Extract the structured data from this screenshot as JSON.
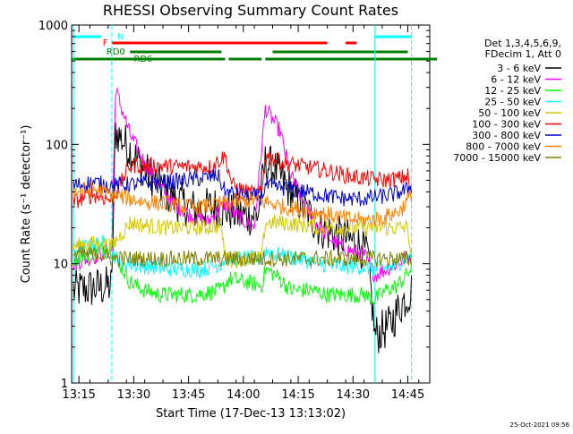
{
  "chart_data": {
    "type": "line",
    "title": "RHESSI Observing Summary Count Rates",
    "xlabel": "Start Time (17-Dec-13 13:13:02)",
    "ylabel": "Count Rate (s⁻¹ detector⁻¹)",
    "yscale": "log",
    "ylim": [
      1,
      1000
    ],
    "xlim_minutes_after_13_13": [
      0,
      98
    ],
    "x_ticks": [
      "13:15",
      "13:30",
      "13:45",
      "14:00",
      "14:15",
      "14:30",
      "14:45"
    ],
    "y_ticks": [
      "1",
      "10",
      "100",
      "1000"
    ],
    "legend_header": [
      "Det 1,3,4,5,6,9,",
      "FDecim 1, Att 0"
    ],
    "legend_position": "right",
    "footer_text": "25-Oct-2021 09:56",
    "bar_labels": {
      "night": "N",
      "flare": "F",
      "rd0": "RD0",
      "rd6": "RD6"
    },
    "state_bars": [
      {
        "name": "night",
        "color": "#00ffff",
        "intervals": [
          [
            0.5,
            8
          ],
          [
            83,
            93
          ]
        ]
      },
      {
        "name": "flare",
        "color": "#ff0000",
        "intervals": [
          [
            11,
            70
          ],
          [
            75,
            78
          ]
        ]
      },
      {
        "name": "rd0",
        "color": "#008000",
        "intervals": [
          [
            16,
            41
          ],
          [
            55,
            92
          ]
        ]
      },
      {
        "name": "rd6",
        "color": "#008000",
        "intervals": [
          [
            0,
            42
          ],
          [
            43,
            52
          ],
          [
            53,
            100
          ]
        ]
      }
    ],
    "vertical_lines": [
      {
        "x": 0.5,
        "color": "#00ffff",
        "style": "solid"
      },
      {
        "x": 11,
        "color": "#00ffff",
        "style": "dashed"
      },
      {
        "x": 83,
        "color": "#00ffff",
        "style": "solid"
      },
      {
        "x": 93,
        "color": "#00ffff",
        "style": "dashed"
      }
    ],
    "series": [
      {
        "name": "3 - 6 keV",
        "color": "#000000",
        "points": [
          [
            0.5,
            6
          ],
          [
            11,
            6.5
          ],
          [
            12,
            130
          ],
          [
            16,
            90
          ],
          [
            20,
            60
          ],
          [
            24,
            45
          ],
          [
            28,
            35
          ],
          [
            34,
            28
          ],
          [
            39,
            30
          ],
          [
            43,
            28
          ],
          [
            47,
            25
          ],
          [
            51,
            26
          ],
          [
            53,
            70
          ],
          [
            56,
            60
          ],
          [
            60,
            40
          ],
          [
            64,
            28
          ],
          [
            68,
            20
          ],
          [
            73,
            17
          ],
          [
            78,
            15
          ],
          [
            81,
            12
          ],
          [
            83,
            2.5
          ],
          [
            87,
            3
          ],
          [
            90,
            4.5
          ],
          [
            93,
            6
          ]
        ]
      },
      {
        "name": "6 - 12 keV",
        "color": "#ff00ff",
        "points": [
          [
            0.5,
            10
          ],
          [
            11,
            13
          ],
          [
            12,
            290
          ],
          [
            16,
            120
          ],
          [
            20,
            70
          ],
          [
            24,
            45
          ],
          [
            28,
            32
          ],
          [
            32,
            26
          ],
          [
            37,
            22
          ],
          [
            42,
            32
          ],
          [
            46,
            24
          ],
          [
            50,
            20
          ],
          [
            53,
            200
          ],
          [
            57,
            130
          ],
          [
            60,
            55
          ],
          [
            64,
            30
          ],
          [
            68,
            20
          ],
          [
            72,
            15
          ],
          [
            76,
            13
          ],
          [
            80,
            12
          ],
          [
            83,
            8
          ],
          [
            86,
            9
          ],
          [
            89,
            10
          ],
          [
            93,
            12
          ]
        ]
      },
      {
        "name": "12 - 25 keV",
        "color": "#00ff00",
        "points": [
          [
            0.5,
            11
          ],
          [
            8,
            13
          ],
          [
            11,
            13
          ],
          [
            16,
            7
          ],
          [
            20,
            6
          ],
          [
            24,
            5.5
          ],
          [
            30,
            5.5
          ],
          [
            34,
            5.5
          ],
          [
            41,
            6
          ],
          [
            43,
            7.5
          ],
          [
            48,
            7
          ],
          [
            52,
            6.5
          ],
          [
            53,
            9
          ],
          [
            56,
            8
          ],
          [
            60,
            6
          ],
          [
            66,
            6
          ],
          [
            70,
            5.5
          ],
          [
            75,
            5.5
          ],
          [
            80,
            5.5
          ],
          [
            83,
            5
          ],
          [
            86,
            6
          ],
          [
            89,
            6.5
          ],
          [
            93,
            9
          ]
        ]
      },
      {
        "name": "25 - 50 keV",
        "color": "#00ffff",
        "points": [
          [
            0.5,
            13
          ],
          [
            8,
            15
          ],
          [
            11,
            14
          ],
          [
            12,
            11
          ],
          [
            16,
            10
          ],
          [
            20,
            9.5
          ],
          [
            26,
            9
          ],
          [
            31,
            9
          ],
          [
            36,
            9
          ],
          [
            41,
            10
          ],
          [
            42,
            11
          ],
          [
            47,
            11
          ],
          [
            52,
            11
          ],
          [
            53,
            13
          ],
          [
            56,
            12
          ],
          [
            62,
            11
          ],
          [
            68,
            10
          ],
          [
            73,
            9.5
          ],
          [
            78,
            9.5
          ],
          [
            83,
            9
          ],
          [
            88,
            9.5
          ],
          [
            93,
            12
          ]
        ]
      },
      {
        "name": "50 - 100 keV",
        "color": "#d4c800",
        "points": [
          [
            0.5,
            14
          ],
          [
            8,
            15
          ],
          [
            11,
            14
          ],
          [
            16,
            22
          ],
          [
            20,
            21
          ],
          [
            26,
            20
          ],
          [
            31,
            20
          ],
          [
            36,
            20
          ],
          [
            41,
            21
          ],
          [
            42,
            11
          ],
          [
            47,
            11
          ],
          [
            52,
            11
          ],
          [
            53,
            22
          ],
          [
            58,
            22
          ],
          [
            64,
            21
          ],
          [
            70,
            20
          ],
          [
            75,
            20
          ],
          [
            80,
            20
          ],
          [
            83,
            20
          ],
          [
            88,
            20
          ],
          [
            92,
            20
          ],
          [
            93,
            11
          ]
        ]
      },
      {
        "name": "100 - 300 keV",
        "color": "#ff0000",
        "points": [
          [
            0.5,
            33
          ],
          [
            6,
            38
          ],
          [
            11,
            34
          ],
          [
            16,
            67
          ],
          [
            22,
            67
          ],
          [
            28,
            65
          ],
          [
            33,
            65
          ],
          [
            38,
            65
          ],
          [
            42,
            80
          ],
          [
            44,
            45
          ],
          [
            48,
            40
          ],
          [
            52,
            38
          ],
          [
            53,
            80
          ],
          [
            58,
            70
          ],
          [
            64,
            65
          ],
          [
            70,
            60
          ],
          [
            75,
            55
          ],
          [
            80,
            52
          ],
          [
            85,
            50
          ],
          [
            90,
            52
          ],
          [
            92,
            55
          ],
          [
            93,
            33
          ]
        ]
      },
      {
        "name": "300 - 800 keV",
        "color": "#0000cc",
        "points": [
          [
            0.5,
            45
          ],
          [
            6,
            48
          ],
          [
            11,
            45
          ],
          [
            15,
            46
          ],
          [
            20,
            47
          ],
          [
            26,
            48
          ],
          [
            31,
            50
          ],
          [
            36,
            52
          ],
          [
            40,
            55
          ],
          [
            42,
            40
          ],
          [
            47,
            37
          ],
          [
            52,
            36
          ],
          [
            53,
            45
          ],
          [
            58,
            43
          ],
          [
            64,
            40
          ],
          [
            70,
            37
          ],
          [
            75,
            35
          ],
          [
            80,
            35
          ],
          [
            83,
            36
          ],
          [
            88,
            38
          ],
          [
            92,
            42
          ],
          [
            93,
            45
          ]
        ]
      },
      {
        "name": "800 - 7000 keV",
        "color": "#ff8000",
        "points": [
          [
            0.5,
            40
          ],
          [
            6,
            42
          ],
          [
            11,
            38
          ],
          [
            16,
            35
          ],
          [
            20,
            33
          ],
          [
            26,
            32
          ],
          [
            31,
            30
          ],
          [
            36,
            30
          ],
          [
            41,
            32
          ],
          [
            45,
            33
          ],
          [
            50,
            34
          ],
          [
            53,
            33
          ],
          [
            58,
            30
          ],
          [
            64,
            28
          ],
          [
            70,
            26
          ],
          [
            75,
            24
          ],
          [
            80,
            23
          ],
          [
            85,
            24
          ],
          [
            90,
            28
          ],
          [
            93,
            38
          ]
        ]
      },
      {
        "name": "7000 - 15000 keV",
        "color": "#808000",
        "points": [
          [
            0.5,
            12
          ],
          [
            8,
            12
          ],
          [
            11,
            11
          ],
          [
            20,
            11
          ],
          [
            40,
            11
          ],
          [
            60,
            11
          ],
          [
            80,
            11
          ],
          [
            93,
            11
          ]
        ]
      }
    ]
  }
}
